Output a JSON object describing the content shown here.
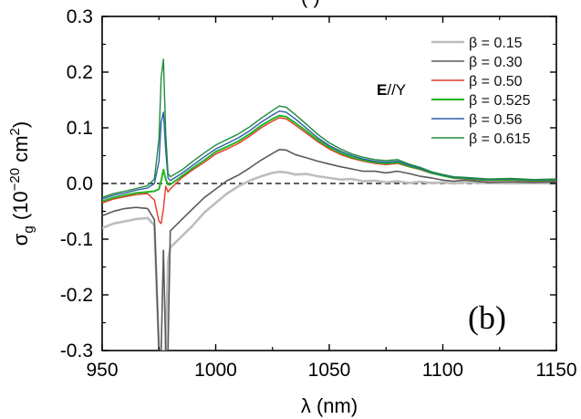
{
  "chart_data": {
    "type": "line",
    "title_fragment": "(      )",
    "xlabel": {
      "symbol": "λ",
      "unit": " (nm)"
    },
    "ylabel": {
      "symbol": "σ",
      "subscript": "g",
      "prefix": " (10",
      "exponent": "−20",
      "mid": " cm",
      "exponent2": "2",
      "suffix": ")"
    },
    "xlim": [
      950,
      1150
    ],
    "ylim": [
      -0.3,
      0.3
    ],
    "xticks": [
      950,
      1000,
      1050,
      1100,
      1150
    ],
    "yticks": [
      0.3,
      0.2,
      0.1,
      0.0,
      -0.1,
      -0.2,
      -0.3
    ],
    "ytick_labels": [
      "0.3",
      "0.2",
      "0.1",
      "0.0",
      "-0.1",
      "-0.2",
      "-0.3"
    ],
    "zero_line": {
      "y": 0,
      "style": "dashed"
    },
    "annotation": {
      "bold": "E",
      "rest": "//Y"
    },
    "panel_label": "(b)",
    "legend_position": "top-right",
    "series": [
      {
        "name": "β = 0.15",
        "color": "#bdbdbd",
        "width": 2.6,
        "points": [
          [
            950,
            -0.08
          ],
          [
            955,
            -0.072
          ],
          [
            960,
            -0.068
          ],
          [
            965,
            -0.064
          ],
          [
            970,
            -0.062
          ],
          [
            973,
            -0.075
          ],
          [
            975,
            -0.3
          ],
          [
            976,
            -0.3
          ],
          [
            977,
            -0.3
          ],
          [
            978,
            -0.3
          ],
          [
            979,
            -0.14
          ],
          [
            980,
            -0.115
          ],
          [
            985,
            -0.095
          ],
          [
            990,
            -0.075
          ],
          [
            995,
            -0.052
          ],
          [
            1000,
            -0.035
          ],
          [
            1005,
            -0.018
          ],
          [
            1010,
            -0.005
          ],
          [
            1015,
            0.005
          ],
          [
            1020,
            0.013
          ],
          [
            1025,
            0.019
          ],
          [
            1028,
            0.021
          ],
          [
            1031,
            0.02
          ],
          [
            1035,
            0.016
          ],
          [
            1040,
            0.017
          ],
          [
            1045,
            0.013
          ],
          [
            1050,
            0.01
          ],
          [
            1055,
            0.007
          ],
          [
            1060,
            0.008
          ],
          [
            1065,
            0.004
          ],
          [
            1070,
            0.005
          ],
          [
            1075,
            0.002
          ],
          [
            1080,
            0.004
          ],
          [
            1085,
            0.001
          ],
          [
            1090,
            0.003
          ],
          [
            1095,
            0.001
          ],
          [
            1100,
            0.002
          ],
          [
            1105,
            0.0
          ],
          [
            1110,
            0.002
          ],
          [
            1120,
            0.001
          ],
          [
            1130,
            0.0
          ],
          [
            1140,
            0.001
          ],
          [
            1150,
            0.0
          ]
        ]
      },
      {
        "name": "β = 0.30",
        "color": "#5a5a5a",
        "width": 1.6,
        "points": [
          [
            950,
            -0.058
          ],
          [
            955,
            -0.05
          ],
          [
            960,
            -0.045
          ],
          [
            965,
            -0.043
          ],
          [
            970,
            -0.045
          ],
          [
            973,
            -0.065
          ],
          [
            975,
            -0.3
          ],
          [
            976,
            -0.3
          ],
          [
            977,
            -0.12
          ],
          [
            978,
            -0.3
          ],
          [
            979,
            -0.3
          ],
          [
            980,
            -0.085
          ],
          [
            985,
            -0.065
          ],
          [
            990,
            -0.045
          ],
          [
            995,
            -0.025
          ],
          [
            1000,
            -0.01
          ],
          [
            1005,
            0.005
          ],
          [
            1010,
            0.015
          ],
          [
            1015,
            0.028
          ],
          [
            1020,
            0.042
          ],
          [
            1025,
            0.054
          ],
          [
            1028,
            0.061
          ],
          [
            1031,
            0.06
          ],
          [
            1035,
            0.052
          ],
          [
            1040,
            0.046
          ],
          [
            1045,
            0.04
          ],
          [
            1050,
            0.035
          ],
          [
            1055,
            0.03
          ],
          [
            1060,
            0.026
          ],
          [
            1065,
            0.022
          ],
          [
            1070,
            0.022
          ],
          [
            1075,
            0.019
          ],
          [
            1080,
            0.022
          ],
          [
            1085,
            0.018
          ],
          [
            1090,
            0.013
          ],
          [
            1095,
            0.01
          ],
          [
            1100,
            0.006
          ],
          [
            1105,
            0.004
          ],
          [
            1110,
            0.006
          ],
          [
            1120,
            0.002
          ],
          [
            1130,
            0.003
          ],
          [
            1140,
            0.002
          ],
          [
            1150,
            0.003
          ]
        ]
      },
      {
        "name": "β = 0.50",
        "color": "#e03a2a",
        "width": 1.4,
        "points": [
          [
            950,
            -0.035
          ],
          [
            955,
            -0.028
          ],
          [
            960,
            -0.024
          ],
          [
            965,
            -0.02
          ],
          [
            970,
            -0.018
          ],
          [
            973,
            -0.03
          ],
          [
            975,
            -0.068
          ],
          [
            976,
            -0.072
          ],
          [
            977,
            -0.045
          ],
          [
            978,
            -0.005
          ],
          [
            979,
            -0.015
          ],
          [
            980,
            -0.01
          ],
          [
            985,
            0.01
          ],
          [
            990,
            0.025
          ],
          [
            995,
            0.038
          ],
          [
            1000,
            0.053
          ],
          [
            1005,
            0.062
          ],
          [
            1010,
            0.072
          ],
          [
            1015,
            0.085
          ],
          [
            1020,
            0.1
          ],
          [
            1025,
            0.112
          ],
          [
            1028,
            0.118
          ],
          [
            1031,
            0.116
          ],
          [
            1035,
            0.105
          ],
          [
            1040,
            0.09
          ],
          [
            1045,
            0.075
          ],
          [
            1050,
            0.062
          ],
          [
            1055,
            0.052
          ],
          [
            1060,
            0.045
          ],
          [
            1065,
            0.04
          ],
          [
            1070,
            0.036
          ],
          [
            1075,
            0.034
          ],
          [
            1080,
            0.036
          ],
          [
            1085,
            0.03
          ],
          [
            1090,
            0.025
          ],
          [
            1095,
            0.018
          ],
          [
            1100,
            0.014
          ],
          [
            1105,
            0.009
          ],
          [
            1110,
            0.008
          ],
          [
            1120,
            0.005
          ],
          [
            1130,
            0.006
          ],
          [
            1140,
            0.004
          ],
          [
            1150,
            0.005
          ]
        ]
      },
      {
        "name": "β = 0.525",
        "color": "#22b524",
        "width": 2.0,
        "points": [
          [
            950,
            -0.032
          ],
          [
            955,
            -0.025
          ],
          [
            960,
            -0.021
          ],
          [
            965,
            -0.017
          ],
          [
            970,
            -0.015
          ],
          [
            973,
            -0.014
          ],
          [
            975,
            -0.01
          ],
          [
            976,
            0.005
          ],
          [
            977,
            0.025
          ],
          [
            978,
            0.008
          ],
          [
            979,
            -0.002
          ],
          [
            980,
            -0.002
          ],
          [
            985,
            0.013
          ],
          [
            990,
            0.028
          ],
          [
            995,
            0.042
          ],
          [
            1000,
            0.057
          ],
          [
            1005,
            0.066
          ],
          [
            1010,
            0.076
          ],
          [
            1015,
            0.089
          ],
          [
            1020,
            0.104
          ],
          [
            1025,
            0.116
          ],
          [
            1028,
            0.122
          ],
          [
            1031,
            0.12
          ],
          [
            1035,
            0.109
          ],
          [
            1040,
            0.094
          ],
          [
            1045,
            0.078
          ],
          [
            1050,
            0.065
          ],
          [
            1055,
            0.055
          ],
          [
            1060,
            0.047
          ],
          [
            1065,
            0.042
          ],
          [
            1070,
            0.038
          ],
          [
            1075,
            0.036
          ],
          [
            1080,
            0.038
          ],
          [
            1085,
            0.031
          ],
          [
            1090,
            0.026
          ],
          [
            1095,
            0.019
          ],
          [
            1100,
            0.014
          ],
          [
            1105,
            0.01
          ],
          [
            1110,
            0.009
          ],
          [
            1120,
            0.006
          ],
          [
            1130,
            0.007
          ],
          [
            1140,
            0.005
          ],
          [
            1150,
            0.006
          ]
        ]
      },
      {
        "name": "β = 0.56",
        "color": "#2c5ea8",
        "width": 1.4,
        "points": [
          [
            950,
            -0.028
          ],
          [
            955,
            -0.021
          ],
          [
            960,
            -0.017
          ],
          [
            965,
            -0.012
          ],
          [
            970,
            -0.008
          ],
          [
            973,
            0.0
          ],
          [
            975,
            0.04
          ],
          [
            976,
            0.11
          ],
          [
            977,
            0.128
          ],
          [
            978,
            0.06
          ],
          [
            979,
            0.01
          ],
          [
            980,
            0.005
          ],
          [
            985,
            0.018
          ],
          [
            990,
            0.033
          ],
          [
            995,
            0.048
          ],
          [
            1000,
            0.062
          ],
          [
            1005,
            0.072
          ],
          [
            1010,
            0.082
          ],
          [
            1015,
            0.095
          ],
          [
            1020,
            0.11
          ],
          [
            1025,
            0.123
          ],
          [
            1028,
            0.13
          ],
          [
            1031,
            0.128
          ],
          [
            1035,
            0.116
          ],
          [
            1040,
            0.099
          ],
          [
            1045,
            0.082
          ],
          [
            1050,
            0.068
          ],
          [
            1055,
            0.058
          ],
          [
            1060,
            0.05
          ],
          [
            1065,
            0.044
          ],
          [
            1070,
            0.04
          ],
          [
            1075,
            0.038
          ],
          [
            1080,
            0.04
          ],
          [
            1085,
            0.033
          ],
          [
            1090,
            0.027
          ],
          [
            1095,
            0.02
          ],
          [
            1100,
            0.015
          ],
          [
            1105,
            0.011
          ],
          [
            1110,
            0.01
          ],
          [
            1120,
            0.007
          ],
          [
            1130,
            0.008
          ],
          [
            1140,
            0.006
          ],
          [
            1150,
            0.007
          ]
        ]
      },
      {
        "name": "β = 0.615",
        "color": "#1f8a3c",
        "width": 1.4,
        "points": [
          [
            950,
            -0.025
          ],
          [
            955,
            -0.018
          ],
          [
            960,
            -0.014
          ],
          [
            965,
            -0.009
          ],
          [
            970,
            -0.004
          ],
          [
            973,
            0.008
          ],
          [
            975,
            0.08
          ],
          [
            976,
            0.19
          ],
          [
            977,
            0.223
          ],
          [
            978,
            0.09
          ],
          [
            979,
            0.018
          ],
          [
            980,
            0.012
          ],
          [
            985,
            0.024
          ],
          [
            990,
            0.04
          ],
          [
            995,
            0.055
          ],
          [
            1000,
            0.069
          ],
          [
            1005,
            0.079
          ],
          [
            1010,
            0.089
          ],
          [
            1015,
            0.102
          ],
          [
            1020,
            0.117
          ],
          [
            1025,
            0.131
          ],
          [
            1028,
            0.139
          ],
          [
            1031,
            0.137
          ],
          [
            1035,
            0.124
          ],
          [
            1040,
            0.106
          ],
          [
            1045,
            0.088
          ],
          [
            1050,
            0.073
          ],
          [
            1055,
            0.062
          ],
          [
            1060,
            0.053
          ],
          [
            1065,
            0.047
          ],
          [
            1070,
            0.043
          ],
          [
            1075,
            0.041
          ],
          [
            1080,
            0.043
          ],
          [
            1085,
            0.035
          ],
          [
            1090,
            0.029
          ],
          [
            1095,
            0.021
          ],
          [
            1100,
            0.016
          ],
          [
            1105,
            0.012
          ],
          [
            1110,
            0.011
          ],
          [
            1120,
            0.008
          ],
          [
            1130,
            0.009
          ],
          [
            1140,
            0.007
          ],
          [
            1150,
            0.008
          ]
        ]
      }
    ]
  }
}
